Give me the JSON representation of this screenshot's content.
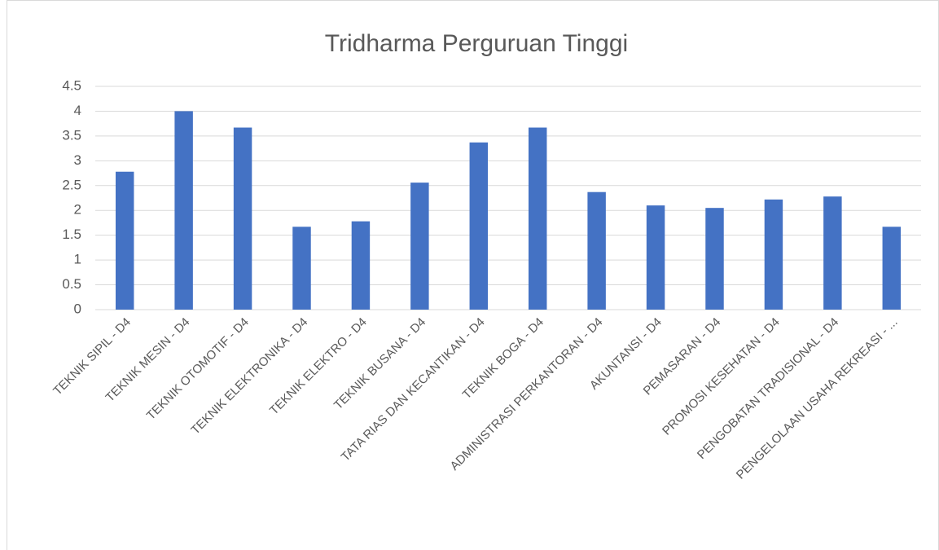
{
  "chart_data": {
    "type": "bar",
    "title": "Tridharma Perguruan Tinggi",
    "categories": [
      "TEKNIK SIPIL - D4",
      "TEKNIK MESIN - D4",
      "TEKNIK OTOMOTIF - D4",
      "TEKNIK ELEKTRONIKA - D4",
      "TEKNIK ELEKTRO - D4",
      "TEKNIK BUSANA - D4",
      "TATA RIAS DAN KECANTIKAN - D4",
      "TEKNIK BOGA - D4",
      "ADMINISTRASI PERKANTORAN - D4",
      "AKUNTANSI - D4",
      "PEMASARAN - D4",
      "PROMOSI KESEHATAN - D4",
      "PENGOBATAN TRADISIONAL - D4",
      "PENGELOLAAN USAHA REKREASI - ..."
    ],
    "values": [
      2.78,
      4,
      3.67,
      1.67,
      1.78,
      2.56,
      3.37,
      3.67,
      2.37,
      2.1,
      2.05,
      2.22,
      2.28,
      1.67
    ],
    "color": "#4472c4",
    "ylim": [
      0,
      4.5
    ],
    "yticks": [
      0,
      0.5,
      1,
      1.5,
      2,
      2.5,
      3,
      3.5,
      4,
      4.5
    ],
    "grid": true
  }
}
